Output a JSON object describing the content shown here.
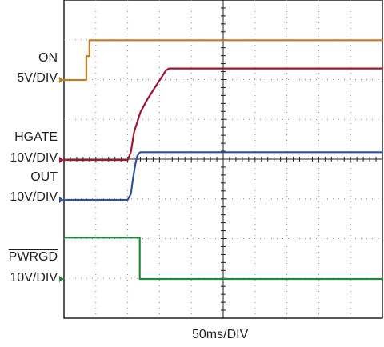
{
  "chart_data": {
    "type": "line",
    "title": "",
    "xlabel": "50ms/DIV",
    "ylabel": "",
    "grid": true,
    "x_unit": "ms",
    "x_divisions": 10,
    "y_divisions": 8,
    "x_per_div_ms": 50,
    "xlim": [
      0,
      500
    ],
    "series": [
      {
        "name": "ON",
        "scale": "5V/DIV",
        "color": "#c87a1e",
        "x": [
          0,
          35,
          35,
          40,
          40,
          500
        ],
        "y_div": [
          0,
          0,
          0.6,
          0.6,
          1.0,
          1.0
        ]
      },
      {
        "name": "HGATE",
        "scale": "10V/DIV",
        "color": "#a2142f",
        "x": [
          0,
          100,
          105,
          110,
          120,
          130,
          140,
          150,
          160,
          165,
          500
        ],
        "y_div": [
          0,
          0,
          0.2,
          0.7,
          1.2,
          1.5,
          1.75,
          2.0,
          2.25,
          2.3,
          2.3
        ]
      },
      {
        "name": "OUT",
        "scale": "10V/DIV",
        "color": "#2f4fa3",
        "x": [
          0,
          100,
          105,
          108,
          112,
          115,
          118,
          120,
          500
        ],
        "y_div": [
          0,
          0,
          0.15,
          0.5,
          0.9,
          1.1,
          1.18,
          1.2,
          1.2
        ]
      },
      {
        "name": "PWRGD",
        "scale": "10V/DIV",
        "color": "#1e8a3c",
        "x": [
          0,
          119,
          119,
          500
        ],
        "y_div": [
          1.04,
          1.04,
          0,
          0
        ]
      }
    ]
  },
  "labels": {
    "on_name": "ON",
    "on_scale": "5V/DIV",
    "hgate_name": "HGATE",
    "hgate_scale": "10V/DIV",
    "out_name": "OUT",
    "out_scale": "10V/DIV",
    "pwrgd_name": "PWRGD",
    "pwrgd_scale": "10V/DIV",
    "time_scale": "50ms/DIV"
  }
}
